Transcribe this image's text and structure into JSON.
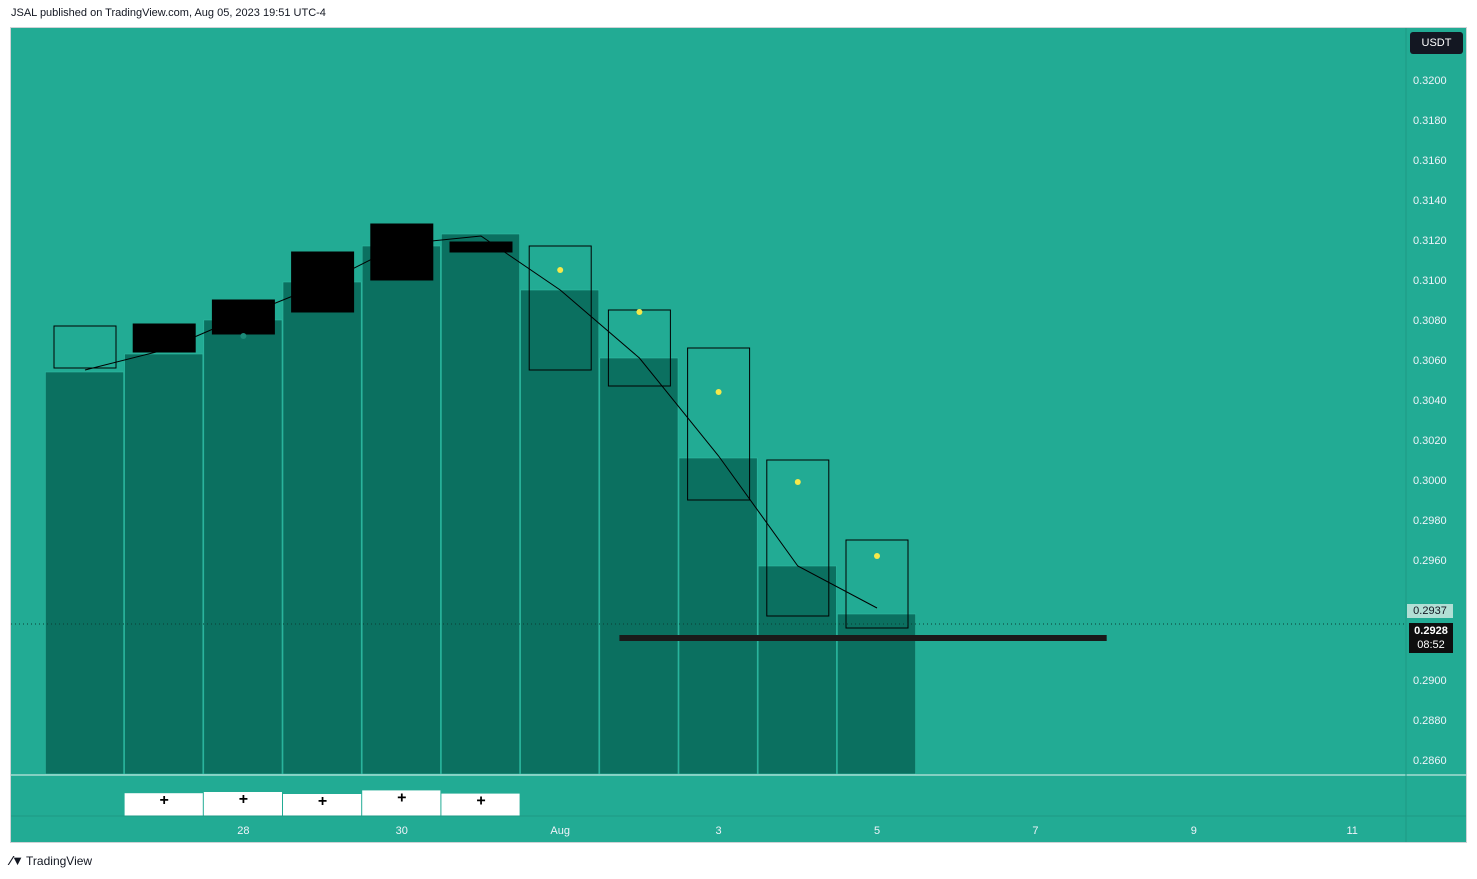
{
  "header": {
    "published": "JSAL published on TradingView.com, Aug 05, 2023 19:51 UTC-4"
  },
  "currency_button": "USDT",
  "price_tags": {
    "last_value": "0.2937",
    "current_price": "0.2928",
    "countdown": "08:52"
  },
  "footer": {
    "logo_text": "TradingView"
  },
  "colors": {
    "background": "#22ab94",
    "volume_bar": "#0b7060",
    "candle": "#000000",
    "dot": "#f5e94a"
  },
  "chart_data": {
    "type": "candlestick",
    "y_axis": {
      "min": 0.2853,
      "max": 0.3226,
      "ticks": [
        "0.3200",
        "0.3180",
        "0.3160",
        "0.3140",
        "0.3120",
        "0.3100",
        "0.3080",
        "0.3060",
        "0.3040",
        "0.3020",
        "0.3000",
        "0.2980",
        "0.2960",
        "0.2900",
        "0.2880",
        "0.2860"
      ]
    },
    "x_axis": {
      "labels": [
        {
          "text": "28",
          "index": 2
        },
        {
          "text": "30",
          "index": 4
        },
        {
          "text": "Aug",
          "index": 6
        },
        {
          "text": "3",
          "index": 8
        },
        {
          "text": "5",
          "index": 10
        },
        {
          "text": "7",
          "index": 12
        },
        {
          "text": "9",
          "index": 14
        },
        {
          "text": "11",
          "index": 16
        }
      ]
    },
    "candles": [
      {
        "index": 0,
        "open": 0.3056,
        "high": 0.3078,
        "low": 0.305,
        "close": 0.3077,
        "filled": false,
        "dot": null
      },
      {
        "index": 1,
        "open": 0.3064,
        "high": 0.3078,
        "low": 0.3063,
        "close": 0.3078,
        "filled": true,
        "dot": null
      },
      {
        "index": 2,
        "open": 0.3073,
        "high": 0.309,
        "low": 0.3073,
        "close": 0.309,
        "filled": true,
        "dot": 0.3072
      },
      {
        "index": 3,
        "open": 0.3084,
        "high": 0.3114,
        "low": 0.3084,
        "close": 0.3114,
        "filled": true,
        "dot": null
      },
      {
        "index": 4,
        "open": 0.31,
        "high": 0.3128,
        "low": 0.31,
        "close": 0.3128,
        "filled": true,
        "dot": null
      },
      {
        "index": 5,
        "open": 0.3114,
        "high": 0.3119,
        "low": 0.3114,
        "close": 0.3119,
        "filled": true,
        "dot": null
      },
      {
        "index": 6,
        "open": 0.3117,
        "high": 0.3117,
        "low": 0.3055,
        "close": 0.3055,
        "filled": false,
        "dot": 0.3105
      },
      {
        "index": 7,
        "open": 0.3085,
        "high": 0.3085,
        "low": 0.3047,
        "close": 0.3047,
        "filled": false,
        "dot": 0.3084
      },
      {
        "index": 8,
        "open": 0.3066,
        "high": 0.3066,
        "low": 0.299,
        "close": 0.299,
        "filled": false,
        "dot": 0.3044
      },
      {
        "index": 9,
        "open": 0.301,
        "high": 0.301,
        "low": 0.2932,
        "close": 0.2932,
        "filled": false,
        "dot": 0.2999
      },
      {
        "index": 10,
        "open": 0.297,
        "high": 0.297,
        "low": 0.2926,
        "close": 0.2926,
        "filled": false,
        "dot": 0.2962
      }
    ],
    "volume_bars": [
      {
        "index": 0,
        "top": 0.3054
      },
      {
        "index": 1,
        "top": 0.3063
      },
      {
        "index": 2,
        "top": 0.308
      },
      {
        "index": 3,
        "top": 0.3099
      },
      {
        "index": 4,
        "top": 0.3117
      },
      {
        "index": 5,
        "top": 0.3123
      },
      {
        "index": 6,
        "top": 0.3095
      },
      {
        "index": 7,
        "top": 0.3061
      },
      {
        "index": 8,
        "top": 0.3011
      },
      {
        "index": 9,
        "top": 0.2957
      },
      {
        "index": 10,
        "top": 0.2933
      }
    ],
    "ma_line": [
      {
        "index": 0,
        "value": 0.3055
      },
      {
        "index": 1,
        "value": 0.3065
      },
      {
        "index": 2,
        "value": 0.3082
      },
      {
        "index": 3,
        "value": 0.3098
      },
      {
        "index": 4,
        "value": 0.3118
      },
      {
        "index": 5,
        "value": 0.3122
      },
      {
        "index": 6,
        "value": 0.3095
      },
      {
        "index": 7,
        "value": 0.3061
      },
      {
        "index": 8,
        "value": 0.3012
      },
      {
        "index": 9,
        "value": 0.2957
      },
      {
        "index": 10,
        "value": 0.2936
      }
    ],
    "horizontal_line": {
      "value": 0.2921,
      "from_index": 7,
      "to_index": 12.9
    },
    "price_line": 0.2928,
    "lower_pane": [
      {
        "index": 1,
        "level": 0.6
      },
      {
        "index": 2,
        "level": 0.75
      },
      {
        "index": 3,
        "level": 0.5
      },
      {
        "index": 4,
        "level": 0.95
      },
      {
        "index": 5,
        "level": 0.55
      }
    ]
  }
}
